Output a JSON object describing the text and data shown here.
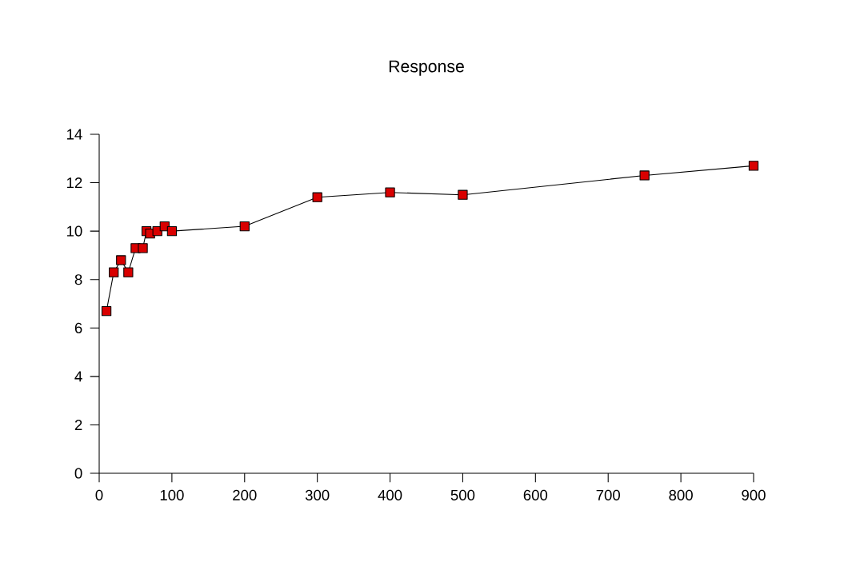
{
  "chart_data": {
    "type": "line",
    "title": "Response",
    "x": [
      10,
      20,
      30,
      40,
      50,
      60,
      65,
      70,
      80,
      90,
      100,
      200,
      300,
      400,
      500,
      750,
      900
    ],
    "series": [
      {
        "color": "#000000",
        "values": [
          6.7,
          8.3,
          8.8,
          8.3,
          9.3,
          9.3,
          10.0,
          9.9,
          10.0,
          10.2,
          10.0,
          10.2,
          11.4,
          11.6,
          11.5,
          12.3,
          12.7
        ]
      }
    ],
    "xlim": [
      0,
      900
    ],
    "xticks": [
      0,
      100,
      200,
      300,
      400,
      500,
      600,
      700,
      800,
      900
    ],
    "ylim": [
      0,
      14
    ],
    "yticks": [
      0,
      2,
      4,
      6,
      8,
      10,
      12,
      14
    ],
    "marker": "square",
    "grid": false
  }
}
